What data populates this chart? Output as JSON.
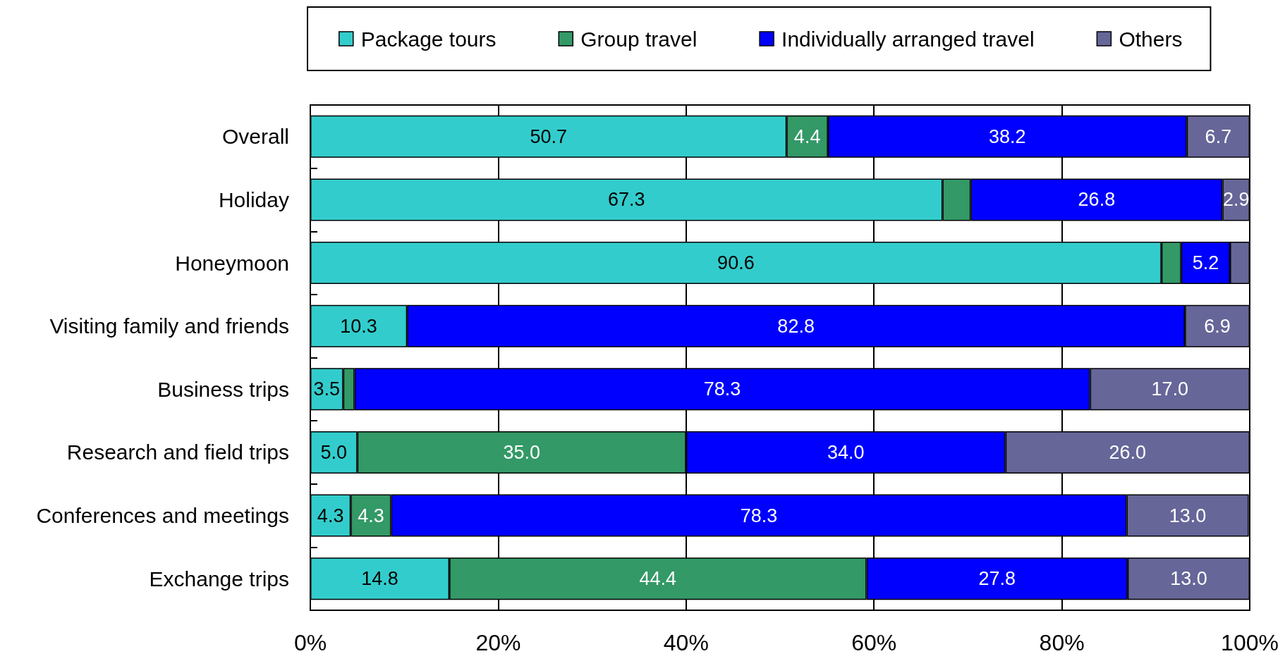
{
  "chart_data": {
    "type": "bar",
    "orientation": "horizontal",
    "stacked": true,
    "categories": [
      "Overall",
      "Holiday",
      "Honeymoon",
      "Visiting family and friends",
      "Business trips",
      "Research and field trips",
      "Conferences and meetings",
      "Exchange trips"
    ],
    "series": [
      {
        "name": "Package tours",
        "color": "#33cccc",
        "values": [
          50.7,
          67.3,
          90.6,
          10.3,
          3.5,
          5.0,
          4.3,
          14.8
        ],
        "value_labels": [
          "50.7",
          "67.3",
          "90.6",
          "10.3",
          "3.5",
          "5.0",
          "4.3",
          "14.8"
        ]
      },
      {
        "name": "Group travel",
        "color": "#339966",
        "values": [
          4.4,
          3.0,
          2.1,
          null,
          1.2,
          35.0,
          4.3,
          44.4
        ],
        "value_labels": [
          "4.4",
          null,
          null,
          null,
          null,
          "35.0",
          "4.3",
          "44.4"
        ]
      },
      {
        "name": "Individually arranged travel",
        "color": "#0000ff",
        "values": [
          38.2,
          26.8,
          5.2,
          82.8,
          78.3,
          34.0,
          78.3,
          27.8
        ],
        "value_labels": [
          "38.2",
          "26.8",
          "5.2",
          "82.8",
          "78.3",
          "34.0",
          "78.3",
          "27.8"
        ]
      },
      {
        "name": "Others",
        "color": "#666699",
        "values": [
          6.7,
          2.9,
          2.1,
          6.9,
          17.0,
          26.0,
          13.0,
          13.0
        ],
        "value_labels": [
          "6.7",
          "2.9",
          null,
          "6.9",
          "17.0",
          "26.0",
          "13.0",
          "13.0"
        ]
      }
    ],
    "xlim": [
      0,
      100
    ],
    "xticks": [
      {
        "value": 0,
        "label": "0%"
      },
      {
        "value": 20,
        "label": "20%"
      },
      {
        "value": 40,
        "label": "40%"
      },
      {
        "value": 60,
        "label": "60%"
      },
      {
        "value": 80,
        "label": "80%"
      },
      {
        "value": 100,
        "label": "100%"
      }
    ],
    "grid": "x",
    "legend": "top"
  }
}
